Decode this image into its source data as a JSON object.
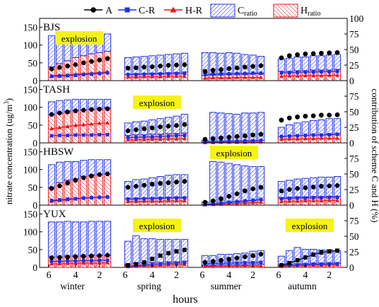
{
  "chart_data": {
    "type": "bar",
    "xlabel": "hours",
    "ylabel_left": "nitrate concentration (ug/m",
    "ylabel_left_sup": "3",
    "ylabel_left_close": ")",
    "ylabel_right": "contribution of  scheme C and H (%)",
    "ylim_left": [
      0,
      175
    ],
    "ylim_right": [
      0,
      100
    ],
    "left_ticks": [
      "0",
      "50",
      "100",
      "150"
    ],
    "right_ticks": [
      "0",
      "25",
      "50",
      "75",
      "100"
    ],
    "hour_ticks": [
      "6",
      "4",
      "2"
    ],
    "seasons": [
      "winter",
      "spring",
      "summer",
      "autumn"
    ],
    "explosion_label": "explosion",
    "colors": {
      "A": "#000000",
      "C": "#1f2fe6",
      "H": "#e8141b",
      "highlight": "#f5f219"
    },
    "legend": {
      "A": "A",
      "CR": "C-R",
      "HR": "H-R",
      "Cratio_main": "C",
      "Cratio_sub": "ratio",
      "Hratio_main": "H",
      "Hratio_sub": "ratio"
    },
    "panels": [
      {
        "name": "BJS",
        "explosion_season": 0,
        "seasons": [
          {
            "A": [
              33,
              37,
              41,
              45,
              50,
              54,
              58,
              62
            ],
            "CR": [
              12,
              13,
              14,
              15,
              17,
              18,
              20,
              22
            ],
            "HR": [
              14,
              15,
              16,
              18,
              19,
              21,
              23,
              25
            ],
            "C": [
              50,
              47,
              43,
              40,
              37,
              35,
              31,
              28
            ],
            "H": [
              22,
              27,
              32,
              37,
              40,
              43,
              45,
              47
            ]
          },
          {
            "A": [
              35,
              36,
              38,
              39,
              41,
              43,
              44,
              45
            ],
            "CR": [
              17,
              17,
              18,
              18,
              19,
              19,
              20,
              20
            ],
            "HR": [
              10,
              10,
              11,
              11,
              11,
              12,
              12,
              12
            ],
            "C": [
              27,
              27,
              28,
              28,
              29,
              29,
              30,
              30
            ],
            "H": [
              10,
              11,
              11,
              12,
              12,
              13,
              13,
              14
            ]
          },
          {
            "A": [
              26,
              29,
              31,
              34,
              36,
              38,
              40,
              42
            ],
            "CR": [
              17,
              18,
              19,
              19,
              20,
              20,
              21,
              21
            ],
            "HR": [
              7,
              8,
              8,
              8,
              9,
              9,
              9,
              9
            ],
            "C": [
              37,
              36,
              35,
              35,
              34,
              32,
              30,
              28
            ],
            "H": [
              8,
              9,
              9,
              10,
              10,
              10,
              11,
              11
            ]
          },
          {
            "A": [
              64,
              70,
              73,
              75,
              76,
              77,
              78,
              79
            ],
            "CR": [
              22,
              22,
              23,
              24,
              24,
              25,
              25,
              26
            ],
            "HR": [
              12,
              13,
              13,
              14,
              14,
              14,
              15,
              15
            ],
            "C": [
              20,
              21,
              22,
              22,
              23,
              23,
              24,
              24
            ],
            "H": [
              15,
              15,
              16,
              16,
              17,
              17,
              17,
              18
            ]
          }
        ]
      },
      {
        "name": "TASH",
        "explosion_season": 1,
        "seasons": [
          {
            "A": [
              80,
              84,
              87,
              90,
              92,
              94,
              95,
              96
            ],
            "CR": [
              20,
              21,
              21,
              22,
              22,
              22,
              23,
              23
            ],
            "HR": [
              40,
              43,
              46,
              49,
              51,
              53,
              55,
              56
            ],
            "C": [
              21,
              20,
              19,
              18,
              17,
              16,
              15,
              14
            ],
            "H": [
              45,
              48,
              50,
              52,
              53,
              54,
              55,
              56
            ]
          },
          {
            "A": [
              34,
              37,
              40,
              42,
              45,
              47,
              49,
              52
            ],
            "CR": [
              15,
              16,
              17,
              17,
              18,
              19,
              20,
              21
            ],
            "HR": [
              8,
              9,
              9,
              10,
              10,
              11,
              11,
              12
            ],
            "C": [
              20,
              21,
              22,
              23,
              25,
              26,
              28,
              30
            ],
            "H": [
              12,
              13,
              13,
              14,
              14,
              15,
              15,
              16
            ]
          },
          {
            "A": [
              10,
              12,
              14,
              16,
              18,
              20,
              22,
              24
            ],
            "CR": [
              3,
              4,
              4,
              5,
              5,
              6,
              6,
              7
            ],
            "HR": [
              1,
              1,
              2,
              2,
              2,
              2,
              3,
              3
            ],
            "C": [
              3,
              47,
              46,
              44,
              43,
              45,
              44,
              45
            ],
            "H": [
              1,
              2,
              2,
              3,
              3,
              3,
              4,
              4
            ]
          },
          {
            "A": [
              64,
              70,
              73,
              75,
              76,
              78,
              78,
              79
            ],
            "CR": [
              18,
              19,
              20,
              21,
              22,
              22,
              23,
              24
            ],
            "HR": [
              10,
              11,
              11,
              12,
              12,
              13,
              13,
              13
            ],
            "C": [
              15,
              18,
              20,
              22,
              23,
              24,
              25,
              25
            ],
            "H": [
              10,
              11,
              12,
              12,
              13,
              13,
              14,
              14
            ]
          }
        ]
      },
      {
        "name": "HBSW",
        "explosion_season": 2,
        "seasons": [
          {
            "A": [
              47,
              54,
              62,
              70,
              77,
              82,
              86,
              88
            ],
            "CR": [
              13,
              15,
              17,
              18,
              20,
              21,
              22,
              23
            ],
            "HR": [
              11,
              13,
              15,
              17,
              19,
              21,
              22,
              23
            ],
            "C": [
              37,
              33,
              30,
              28,
              26,
              25,
              24,
              23
            ],
            "H": [
              28,
              36,
              40,
              42,
              46,
              48,
              49,
              50
            ]
          },
          {
            "A": [
              50,
              53,
              56,
              59,
              61,
              63,
              65,
              67
            ],
            "CR": [
              17,
              17,
              18,
              18,
              19,
              19,
              20,
              20
            ],
            "HR": [
              10,
              10,
              11,
              11,
              11,
              12,
              12,
              12
            ],
            "C": [
              28,
              30,
              31,
              32,
              34,
              35,
              36,
              36
            ],
            "H": [
              10,
              11,
              11,
              12,
              12,
              13,
              13,
              13
            ]
          },
          {
            "A": [
              8,
              12,
              18,
              25,
              32,
              40,
              46,
              50
            ],
            "CR": [
              2,
              4,
              6,
              8,
              10,
              12,
              14,
              16
            ],
            "HR": [
              1,
              2,
              3,
              4,
              5,
              6,
              7,
              8
            ],
            "C": [
              4,
              68,
              66,
              63,
              60,
              57,
              55,
              54
            ],
            "H": [
              1,
              2,
              3,
              4,
              5,
              6,
              7,
              8
            ]
          },
          {
            "A": [
              40,
              44,
              47,
              49,
              51,
              53,
              54,
              55
            ],
            "CR": [
              18,
              19,
              20,
              20,
              21,
              21,
              22,
              22
            ],
            "HR": [
              10,
              11,
              11,
              12,
              12,
              12,
              13,
              13
            ],
            "C": [
              26,
              28,
              29,
              30,
              30,
              31,
              31,
              32
            ],
            "H": [
              12,
              12,
              13,
              13,
              14,
              14,
              14,
              14
            ]
          }
        ]
      },
      {
        "name": "YUX",
        "explosion_season": [
          1,
          3
        ],
        "seasons": [
          {
            "A": [
              27,
              28,
              29,
              30,
              31,
              32,
              33,
              34
            ],
            "CR": [
              17,
              17,
              18,
              18,
              19,
              19,
              20,
              20
            ],
            "HR": [
              10,
              10,
              11,
              11,
              12,
              12,
              12,
              13
            ],
            "C": [
              56,
              56,
              56,
              55,
              55,
              55,
              55,
              55
            ],
            "H": [
              17,
              17,
              18,
              18,
              18,
              19,
              19,
              19
            ]
          },
          {
            "A": [
              6,
              9,
              14,
              24,
              33,
              40,
              45,
              49
            ],
            "CR": [
              3,
              5,
              7,
              9,
              10,
              11,
              12,
              13
            ],
            "HR": [
              2,
              3,
              4,
              5,
              6,
              7,
              8,
              8
            ],
            "C": [
              37,
              45,
              39,
              38,
              37,
              36,
              36,
              35
            ],
            "H": [
              5,
              6,
              7,
              8,
              8,
              9,
              9,
              10
            ]
          },
          {
            "A": [
              14,
              17,
              20,
              23,
              26,
              30,
              33,
              37
            ],
            "CR": [
              10,
              11,
              11,
              12,
              12,
              13,
              13,
              14
            ],
            "HR": [
              3,
              3,
              4,
              4,
              4,
              5,
              5,
              5
            ],
            "C": [
              16,
              16,
              17,
              17,
              18,
              19,
              21,
              22
            ],
            "H": [
              3,
              3,
              4,
              4,
              4,
              4,
              5,
              5
            ]
          },
          {
            "A": [
              6,
              12,
              20,
              28,
              36,
              42,
              45,
              47
            ],
            "CR": [
              5,
              6,
              7,
              8,
              9,
              9,
              10,
              10
            ],
            "HR": [
              3,
              4,
              5,
              5,
              6,
              6,
              7,
              7
            ],
            "C": [
              14,
              22,
              26,
              23,
              22,
              21,
              21,
              20
            ],
            "H": [
              4,
              5,
              6,
              6,
              7,
              7,
              7,
              7
            ]
          }
        ]
      }
    ]
  }
}
